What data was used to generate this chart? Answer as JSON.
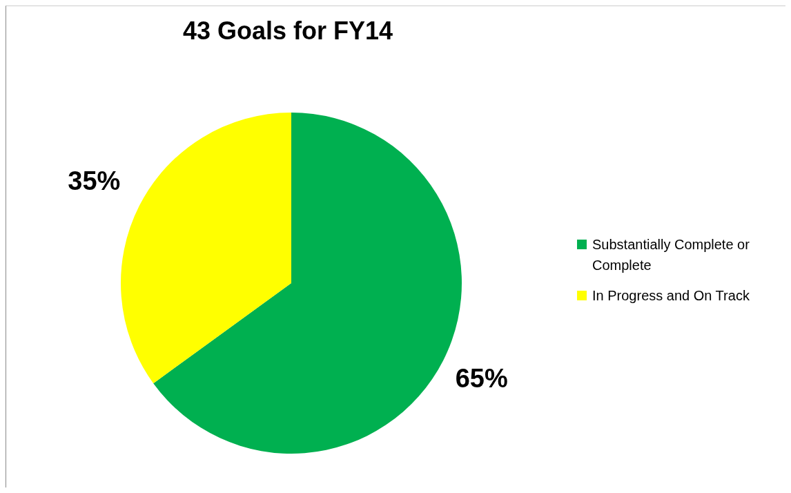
{
  "chart_data": {
    "type": "pie",
    "title": "43 Goals for FY14",
    "categories": [
      "Substantially Complete or Complete",
      "In Progress and On Track"
    ],
    "values": [
      65,
      35
    ],
    "colors": [
      "#00b050",
      "#ffff00"
    ],
    "value_labels": [
      "65%",
      "35%"
    ],
    "legend": "right"
  }
}
